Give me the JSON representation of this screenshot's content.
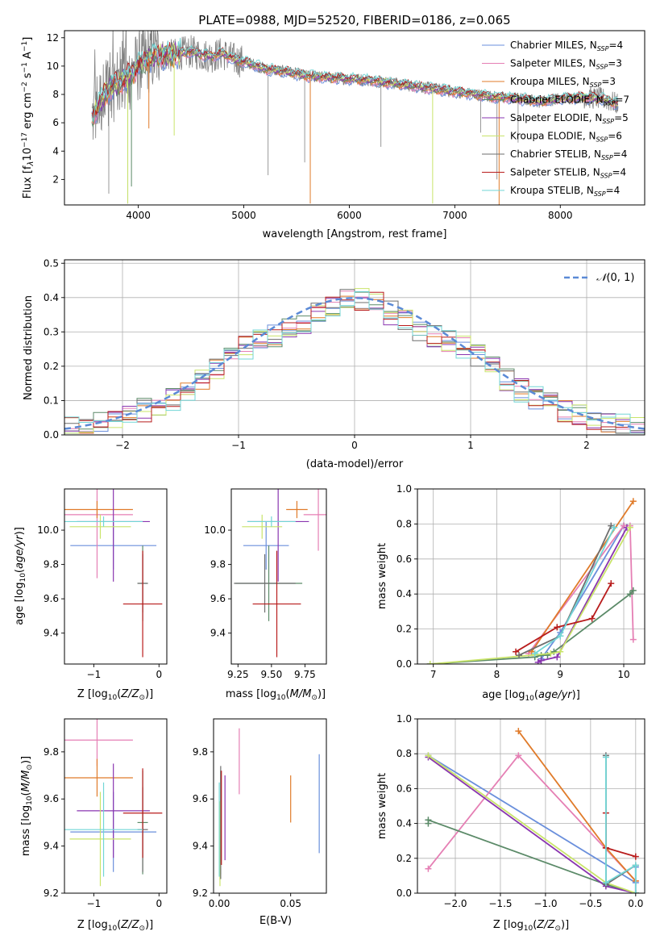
{
  "colors": [
    "#6a8fdc",
    "#e57fb4",
    "#e07b2a",
    "#5b8a68",
    "#8a36b0",
    "#c9e46a",
    "#6e6e6e",
    "#b81c1c",
    "#72d6d6"
  ],
  "chart_data": [
    {
      "id": "spectrum",
      "type": "line",
      "title": "PLATE=0988, MJD=52520, FIBERID=0186, z=0.065",
      "xlabel": "wavelength [Angstrom, rest frame]",
      "ylabel": "Flux [fλ10⁻¹⁷ erg cm⁻² s⁻¹ A⁻¹]",
      "xlim": [
        3300,
        8800
      ],
      "ylim": [
        0.2,
        12.5
      ],
      "xticks": [
        4000,
        5000,
        6000,
        7000,
        8000
      ],
      "yticks": [
        2,
        4,
        6,
        8,
        10,
        12
      ],
      "legend_position": "top-right",
      "data_color": "#808080",
      "continuum": [
        [
          3560,
          6.3
        ],
        [
          3600,
          7.0
        ],
        [
          3700,
          8.2
        ],
        [
          3800,
          8.8
        ],
        [
          3900,
          9.2
        ],
        [
          4000,
          10.0
        ],
        [
          4100,
          10.6
        ],
        [
          4200,
          10.8
        ],
        [
          4300,
          10.7
        ],
        [
          4400,
          10.9
        ],
        [
          4500,
          11.0
        ],
        [
          4600,
          10.8
        ],
        [
          4700,
          10.7
        ],
        [
          4800,
          10.9
        ],
        [
          4900,
          10.5
        ],
        [
          5000,
          10.3
        ],
        [
          5100,
          10.1
        ],
        [
          5200,
          9.8
        ],
        [
          5400,
          9.6
        ],
        [
          5600,
          9.3
        ],
        [
          5800,
          9.2
        ],
        [
          6000,
          9.1
        ],
        [
          6200,
          9.0
        ],
        [
          6400,
          8.8
        ],
        [
          6600,
          8.6
        ],
        [
          6800,
          8.4
        ],
        [
          7000,
          8.2
        ],
        [
          7200,
          8.0
        ],
        [
          7400,
          7.8
        ],
        [
          7600,
          7.7
        ],
        [
          7800,
          7.5
        ],
        [
          8000,
          7.7
        ],
        [
          8200,
          7.8
        ],
        [
          8400,
          7.7
        ],
        [
          8550,
          7.3
        ]
      ],
      "series": [
        {
          "name": "Chabrier MILES, N_SSP=4",
          "label": "Chabrier MILES, N",
          "n": "=4"
        },
        {
          "name": "Salpeter MILES, N_SSP=3",
          "label": "Salpeter MILES, N",
          "n": "=3"
        },
        {
          "name": "Kroupa MILES, N_SSP=3",
          "label": "Kroupa MILES, N",
          "n": "=3"
        },
        {
          "name": "Chabrier ELODIE, N_SSP=7",
          "label": "Chabrier ELODIE, N",
          "n": "=7"
        },
        {
          "name": "Salpeter ELODIE, N_SSP=5",
          "label": "Salpeter ELODIE, N",
          "n": "=5"
        },
        {
          "name": "Kroupa ELODIE, N_SSP=6",
          "label": "Kroupa ELODIE, N",
          "n": "=6"
        },
        {
          "name": "Chabrier STELIB, N_SSP=4",
          "label": "Chabrier STELIB, N",
          "n": "=4"
        },
        {
          "name": "Salpeter STELIB, N_SSP=4",
          "label": "Salpeter STELIB, N",
          "n": "=4"
        },
        {
          "name": "Kroupa STELIB, N_SSP=4",
          "label": "Kroupa STELIB, N",
          "n": "=4"
        }
      ],
      "legend_sub": "SSP"
    },
    {
      "id": "residuals",
      "type": "histogram",
      "xlabel": "(data-model)/error",
      "ylabel": "Normed distribution",
      "xlim": [
        -2.5,
        2.5
      ],
      "ylim": [
        0,
        0.51
      ],
      "xticks": [
        -2,
        -1,
        0,
        1,
        2
      ],
      "yticks": [
        0.0,
        0.1,
        0.2,
        0.3,
        0.4,
        0.5
      ],
      "grid": true,
      "legend_position": "top-right",
      "reference_label": "𝒩(0, 1)",
      "reference_color": "#5b8ad6",
      "bins": 40
    },
    {
      "id": "age_vs_Z",
      "type": "scatter",
      "xlabel": "Z [log₁₀(Z/Z⊙)]",
      "ylabel": "age  [log₁₀(age/yr)]",
      "xlim": [
        -1.45,
        0.12
      ],
      "ylim": [
        9.22,
        10.24
      ],
      "xticks": [
        -1,
        0
      ],
      "yticks": [
        9.4,
        9.6,
        9.8,
        10.0
      ],
      "points": [
        {
          "x": -0.7,
          "y": 9.91,
          "xerr": 0.66,
          "yerr": 0.14
        },
        {
          "x": -0.95,
          "y": 10.09,
          "xerr": 0.55,
          "yerr": 0.37
        },
        {
          "x": -0.95,
          "y": 10.12,
          "xerr": 0.55,
          "yerr": 0.05
        },
        {
          "x": -0.25,
          "y": 9.69,
          "xerr": 0.08,
          "yerr": 0.22
        },
        {
          "x": -0.7,
          "y": 10.05,
          "xerr": 0.56,
          "yerr": 0.35
        },
        {
          "x": -0.9,
          "y": 10.02,
          "xerr": 0.47,
          "yerr": 0.07
        },
        {
          "x": -0.25,
          "y": 9.69,
          "xerr": 0.08,
          "yerr": 0.17
        },
        {
          "x": -0.25,
          "y": 9.57,
          "xerr": 0.3,
          "yerr": 0.31
        },
        {
          "x": -0.85,
          "y": 10.05,
          "xerr": 0.6,
          "yerr": 0.03
        }
      ]
    },
    {
      "id": "age_vs_mass",
      "type": "scatter",
      "xlabel": "mass [log₁₀(M/M⊙)]",
      "ylabel": "",
      "xlim": [
        9.2,
        9.91
      ],
      "ylim": [
        9.22,
        10.24
      ],
      "xticks": [
        9.25,
        9.5,
        9.75
      ],
      "yticks": [
        9.4,
        9.6,
        9.8,
        10.0
      ],
      "points": [
        {
          "x": 9.46,
          "y": 9.91,
          "xerr": 0.17,
          "yerr": 0.14
        },
        {
          "x": 9.85,
          "y": 10.09,
          "xerr": 0.11,
          "yerr": 0.21
        },
        {
          "x": 9.69,
          "y": 10.12,
          "xerr": 0.08,
          "yerr": 0.05
        },
        {
          "x": 9.48,
          "y": 9.69,
          "xerr": 0.25,
          "yerr": 0.22
        },
        {
          "x": 9.55,
          "y": 10.05,
          "xerr": 0.23,
          "yerr": 0.35
        },
        {
          "x": 9.43,
          "y": 10.02,
          "xerr": 0.15,
          "yerr": 0.07
        },
        {
          "x": 9.45,
          "y": 9.69,
          "xerr": 0.23,
          "yerr": 0.17
        },
        {
          "x": 9.54,
          "y": 9.57,
          "xerr": 0.18,
          "yerr": 0.31
        },
        {
          "x": 9.5,
          "y": 10.05,
          "xerr": 0.18,
          "yerr": 0.03
        }
      ]
    },
    {
      "id": "weight_vs_age",
      "type": "line",
      "xlabel": "age  [log₁₀(age/yr)]",
      "ylabel": "mass weight",
      "xlim": [
        6.75,
        10.33
      ],
      "ylim": [
        0,
        1.0
      ],
      "xticks": [
        7,
        8,
        9,
        10
      ],
      "yticks": [
        0.0,
        0.2,
        0.4,
        0.6,
        0.8,
        1.0
      ],
      "grid": true,
      "series": [
        {
          "x": [
            8.7,
            9.0,
            10.0
          ],
          "y": [
            0.03,
            0.18,
            0.79
          ]
        },
        {
          "x": [
            8.5,
            10.0,
            10.1,
            10.15
          ],
          "y": [
            0.06,
            0.79,
            0.79,
            0.14
          ]
        },
        {
          "x": [
            8.55,
            10.15
          ],
          "y": [
            0.07,
            0.93
          ]
        },
        {
          "x": [
            6.95,
            8.6,
            8.7,
            8.8,
            8.9,
            10.1,
            10.15
          ],
          "y": [
            0.0,
            0.04,
            0.05,
            0.05,
            0.07,
            0.4,
            0.42
          ]
        },
        {
          "x": [
            8.65,
            8.7,
            8.95,
            10.05
          ],
          "y": [
            0.01,
            0.02,
            0.04,
            0.78
          ]
        },
        {
          "x": [
            6.95,
            8.85,
            9.0,
            10.1
          ],
          "y": [
            0.0,
            0.06,
            0.07,
            0.78
          ]
        },
        {
          "x": [
            8.35,
            9.0,
            9.8
          ],
          "y": [
            0.05,
            0.16,
            0.79
          ]
        },
        {
          "x": [
            8.3,
            8.95,
            9.5,
            9.8
          ],
          "y": [
            0.07,
            0.21,
            0.26,
            0.46
          ]
        },
        {
          "x": [
            8.6,
            9.0,
            9.85
          ],
          "y": [
            0.06,
            0.16,
            0.78
          ]
        }
      ]
    },
    {
      "id": "mass_vs_Z",
      "type": "scatter",
      "xlabel": "Z [log₁₀(Z/Z⊙)]",
      "ylabel": "mass [log₁₀(M/M⊙)]",
      "xlim": [
        -1.45,
        0.12
      ],
      "ylim": [
        9.2,
        9.94
      ],
      "xticks": [
        -1,
        0
      ],
      "yticks": [
        9.2,
        9.4,
        9.6,
        9.8
      ],
      "points": [
        {
          "x": -0.7,
          "y": 9.46,
          "xerr": 0.66,
          "yerr": 0.17
        },
        {
          "x": -0.95,
          "y": 9.85,
          "xerr": 0.55,
          "yerr": 0.11
        },
        {
          "x": -0.95,
          "y": 9.69,
          "xerr": 0.55,
          "yerr": 0.08
        },
        {
          "x": -0.25,
          "y": 9.5,
          "xerr": 0.08,
          "yerr": 0.22
        },
        {
          "x": -0.7,
          "y": 9.55,
          "xerr": 0.56,
          "yerr": 0.2
        },
        {
          "x": -0.9,
          "y": 9.43,
          "xerr": 0.47,
          "yerr": 0.2
        },
        {
          "x": -0.25,
          "y": 9.47,
          "xerr": 0.08,
          "yerr": 0.18
        },
        {
          "x": -0.25,
          "y": 9.54,
          "xerr": 0.3,
          "yerr": 0.19
        },
        {
          "x": -0.85,
          "y": 9.47,
          "xerr": 0.6,
          "yerr": 0.2
        }
      ]
    },
    {
      "id": "mass_vs_ebv",
      "type": "scatter",
      "xlabel": "E(B-V)",
      "ylabel": "",
      "xlim": [
        -0.004,
        0.075
      ],
      "ylim": [
        9.2,
        9.94
      ],
      "xticks": [
        0.0,
        0.05
      ],
      "yticks": [
        9.2,
        9.4,
        9.6,
        9.8
      ],
      "points": [
        {
          "x": 0.07,
          "y": 9.58,
          "xerr": 0,
          "yerr": 0.21
        },
        {
          "x": 0.014,
          "y": 9.76,
          "xerr": 0,
          "yerr": 0.14
        },
        {
          "x": 0.05,
          "y": 9.6,
          "xerr": 0,
          "yerr": 0.1
        },
        {
          "x": 0.001,
          "y": 9.5,
          "xerr": 0,
          "yerr": 0.22
        },
        {
          "x": 0.004,
          "y": 9.52,
          "xerr": 0,
          "yerr": 0.18
        },
        {
          "x": 0.0005,
          "y": 9.41,
          "xerr": 0,
          "yerr": 0.18
        },
        {
          "x": 0.001,
          "y": 9.5,
          "xerr": 0,
          "yerr": 0.24
        },
        {
          "x": 0.0015,
          "y": 9.52,
          "xerr": 0,
          "yerr": 0.2
        },
        {
          "x": 0.0,
          "y": 9.47,
          "xerr": 0,
          "yerr": 0.2
        }
      ]
    },
    {
      "id": "weight_vs_Z",
      "type": "line",
      "xlabel": "Z [log₁₀(Z/Z⊙)]",
      "ylabel": "mass weight",
      "xlim": [
        -2.42,
        0.1
      ],
      "ylim": [
        0,
        1.0
      ],
      "xticks": [
        -2.0,
        -1.5,
        -1.0,
        -0.5,
        0.0
      ],
      "yticks": [
        0.0,
        0.2,
        0.4,
        0.6,
        0.8,
        1.0
      ],
      "grid": true,
      "series": [
        {
          "x": [
            -2.3,
            0.0,
            0.0
          ],
          "y": [
            0.79,
            0.06,
            0.15
          ]
        },
        {
          "x": [
            -2.3,
            -1.3,
            0.0,
            0.0
          ],
          "y": [
            0.14,
            0.79,
            0.07,
            0.0
          ]
        },
        {
          "x": [
            -1.3,
            -0.33,
            0.0
          ],
          "y": [
            0.93,
            0.26,
            0.07
          ]
        },
        {
          "x": [
            -2.3,
            -2.3,
            -0.33,
            0.0,
            0.0
          ],
          "y": [
            0.4,
            0.42,
            0.05,
            0.0,
            0.0
          ]
        },
        {
          "x": [
            -2.3,
            -0.33,
            0.0
          ],
          "y": [
            0.78,
            0.04,
            0.0
          ]
        },
        {
          "x": [
            -2.3,
            -0.33,
            0.0
          ],
          "y": [
            0.79,
            0.06,
            0.0
          ]
        },
        {
          "x": [
            -0.33,
            -0.33,
            0.0
          ],
          "y": [
            0.79,
            0.05,
            0.16
          ]
        },
        {
          "x": [
            -0.33,
            -0.33,
            0.0
          ],
          "y": [
            0.46,
            0.26,
            0.21
          ]
        },
        {
          "x": [
            -0.33,
            -0.33,
            0.0,
            0.0
          ],
          "y": [
            0.78,
            0.06,
            0.16,
            0.0
          ]
        }
      ]
    }
  ]
}
